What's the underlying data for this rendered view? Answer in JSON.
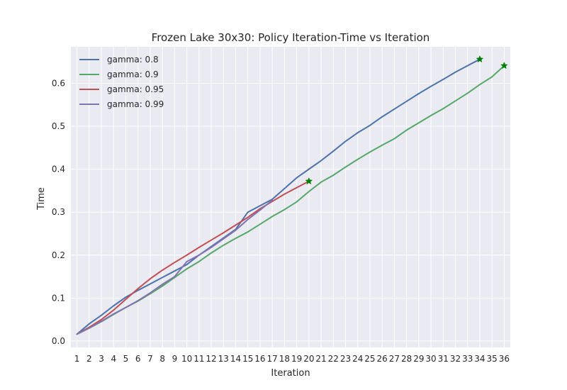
{
  "chart_data": {
    "type": "line",
    "title": "Frozen Lake 30x30: Policy Iteration-Time vs Iteration",
    "xlabel": "Iteration",
    "ylabel": "Time",
    "xlim": [
      0.5,
      36.5
    ],
    "ylim": [
      -0.015,
      0.685
    ],
    "x_ticks": [
      1,
      2,
      3,
      4,
      5,
      6,
      7,
      8,
      9,
      10,
      11,
      12,
      13,
      14,
      15,
      16,
      17,
      18,
      19,
      20,
      21,
      22,
      23,
      24,
      25,
      26,
      27,
      28,
      29,
      30,
      31,
      32,
      33,
      34,
      35,
      36
    ],
    "y_ticks": [
      0.0,
      0.1,
      0.2,
      0.3,
      0.4,
      0.5,
      0.6
    ],
    "y_tick_labels": [
      "0.0",
      "0.1",
      "0.2",
      "0.3",
      "0.4",
      "0.5",
      "0.6"
    ],
    "grid": true,
    "legend_position": "top-left",
    "series": [
      {
        "name": "gamma: 0.8",
        "color": "#4c72b0",
        "x": [
          1,
          2,
          3,
          4,
          5,
          6,
          7,
          8,
          9,
          10,
          11,
          12,
          13,
          14,
          15,
          16,
          17,
          18,
          19,
          20,
          21,
          22,
          23,
          24,
          25,
          26,
          27,
          28,
          29,
          30,
          31,
          32,
          33,
          34
        ],
        "values": [
          0.016,
          0.04,
          0.06,
          0.082,
          0.102,
          0.118,
          0.133,
          0.148,
          0.163,
          0.178,
          0.2,
          0.22,
          0.24,
          0.26,
          0.3,
          0.315,
          0.33,
          0.355,
          0.38,
          0.4,
          0.42,
          0.442,
          0.465,
          0.485,
          0.502,
          0.522,
          0.54,
          0.558,
          0.576,
          0.593,
          0.609,
          0.626,
          0.641,
          0.656
        ],
        "end_marker": true
      },
      {
        "name": "gamma: 0.9",
        "color": "#55a868",
        "x": [
          1,
          2,
          3,
          4,
          5,
          6,
          7,
          8,
          9,
          10,
          11,
          12,
          13,
          14,
          15,
          16,
          17,
          18,
          19,
          20,
          21,
          22,
          23,
          24,
          25,
          26,
          27,
          28,
          29,
          30,
          31,
          32,
          33,
          34,
          35,
          36
        ],
        "values": [
          0.016,
          0.03,
          0.045,
          0.062,
          0.078,
          0.093,
          0.11,
          0.128,
          0.148,
          0.168,
          0.185,
          0.205,
          0.223,
          0.239,
          0.254,
          0.272,
          0.29,
          0.306,
          0.324,
          0.348,
          0.37,
          0.386,
          0.405,
          0.423,
          0.44,
          0.456,
          0.471,
          0.491,
          0.508,
          0.525,
          0.541,
          0.559,
          0.577,
          0.597,
          0.615,
          0.641
        ],
        "end_marker": true
      },
      {
        "name": "gamma: 0.95",
        "color": "#c44e52",
        "x": [
          1,
          2,
          3,
          4,
          5,
          6,
          7,
          8,
          9,
          10,
          11,
          12,
          13,
          14,
          15,
          16,
          17,
          18,
          19,
          20
        ],
        "values": [
          0.016,
          0.032,
          0.05,
          0.072,
          0.097,
          0.122,
          0.145,
          0.165,
          0.183,
          0.2,
          0.218,
          0.235,
          0.252,
          0.27,
          0.288,
          0.308,
          0.325,
          0.342,
          0.357,
          0.372
        ],
        "end_marker": true
      },
      {
        "name": "gamma: 0.99",
        "color": "#8172b2",
        "x": [
          1,
          2,
          3,
          4,
          5,
          6,
          7,
          8,
          9,
          10,
          11,
          12,
          13,
          14,
          15,
          16,
          17
        ],
        "values": [
          0.016,
          0.03,
          0.046,
          0.063,
          0.078,
          0.094,
          0.112,
          0.132,
          0.15,
          0.185,
          0.2,
          0.218,
          0.238,
          0.258,
          0.283,
          0.305,
          0.328
        ],
        "end_marker": false
      }
    ],
    "end_marker_color": "#008000"
  }
}
